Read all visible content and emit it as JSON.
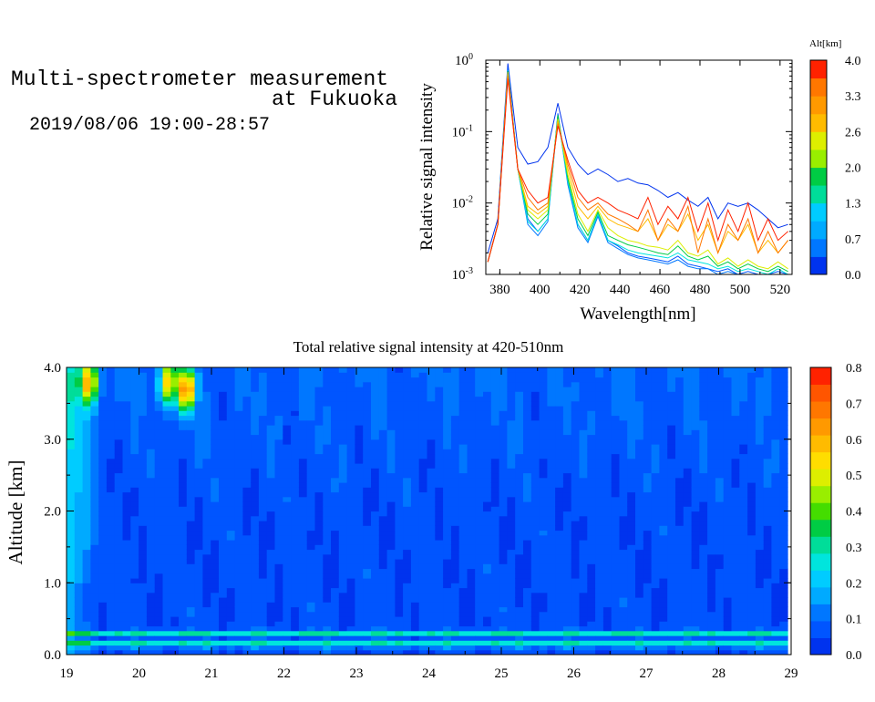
{
  "header": {
    "title_line1": "Multi-spectrometer measurement",
    "title_line2": "at Fukuoka",
    "datetime": "2019/08/06 19:00-28:57"
  },
  "colors": {
    "scale": [
      "#0033ee",
      "#0055ff",
      "#0077ff",
      "#00aaff",
      "#00ccff",
      "#00e5dd",
      "#00dd99",
      "#00cc44",
      "#44dd00",
      "#99ee00",
      "#ddee00",
      "#ffdd00",
      "#ffbb00",
      "#ff9900",
      "#ff7700",
      "#ff5500",
      "#ff2200"
    ]
  },
  "chart_data": [
    {
      "type": "line",
      "xlabel": "Wavelength[nm]",
      "ylabel": "Relative signal intensity",
      "yscale": "log",
      "ylim": [
        0.001,
        1
      ],
      "xlim": [
        373,
        526
      ],
      "xticks": [
        380,
        400,
        420,
        440,
        460,
        480,
        500,
        520
      ],
      "yticks": [
        {
          "value": 0.001,
          "base": "10",
          "exp": "-3"
        },
        {
          "value": 0.01,
          "base": "10",
          "exp": "-2"
        },
        {
          "value": 0.1,
          "base": "10",
          "exp": "-1"
        },
        {
          "value": 1,
          "base": "10",
          "exp": "0"
        }
      ],
      "colorbar": {
        "label": "Alt[km]",
        "ticks": [
          "0.0",
          "0.7",
          "1.3",
          "2.0",
          "2.6",
          "3.3",
          "4.0"
        ],
        "range": [
          0,
          4
        ]
      },
      "x": [
        374,
        379,
        384,
        389,
        394,
        399,
        404,
        409,
        414,
        419,
        424,
        429,
        434,
        439,
        444,
        449,
        454,
        459,
        464,
        469,
        474,
        479,
        484,
        489,
        494,
        499,
        504,
        509,
        514,
        519,
        524
      ],
      "series": [
        {
          "alt": 0.0,
          "values": [
            0.002,
            0.006,
            0.9,
            0.06,
            0.035,
            0.038,
            0.06,
            0.25,
            0.06,
            0.035,
            0.025,
            0.03,
            0.025,
            0.02,
            0.022,
            0.019,
            0.018,
            0.015,
            0.012,
            0.014,
            0.011,
            0.009,
            0.012,
            0.006,
            0.01,
            0.009,
            0.01,
            0.008,
            0.006,
            0.0045,
            0.005
          ]
        },
        {
          "alt": 0.3,
          "values": [
            0.0015,
            0.005,
            0.8,
            0.03,
            0.006,
            0.004,
            0.006,
            0.18,
            0.02,
            0.005,
            0.003,
            0.007,
            0.003,
            0.0025,
            0.002,
            0.0018,
            0.0017,
            0.0016,
            0.0015,
            0.0018,
            0.0014,
            0.0013,
            0.0012,
            0.0011,
            0.0012,
            0.001,
            0.0011,
            0.001,
            0.001,
            0.0011,
            0.001
          ]
        },
        {
          "alt": 0.7,
          "values": [
            0.0015,
            0.005,
            0.75,
            0.03,
            0.005,
            0.0035,
            0.0055,
            0.17,
            0.018,
            0.0045,
            0.0028,
            0.0065,
            0.0028,
            0.0023,
            0.0019,
            0.0017,
            0.0016,
            0.0015,
            0.0014,
            0.0016,
            0.0013,
            0.0012,
            0.0012,
            0.001,
            0.0011,
            0.001,
            0.001,
            0.001,
            0.001,
            0.001,
            0.001
          ]
        },
        {
          "alt": 1.2,
          "values": [
            0.0015,
            0.005,
            0.72,
            0.03,
            0.0055,
            0.004,
            0.006,
            0.16,
            0.02,
            0.005,
            0.003,
            0.007,
            0.003,
            0.0026,
            0.0022,
            0.002,
            0.0019,
            0.0018,
            0.0017,
            0.002,
            0.0016,
            0.0015,
            0.0014,
            0.0012,
            0.0013,
            0.0011,
            0.0012,
            0.0011,
            0.001,
            0.0012,
            0.001
          ]
        },
        {
          "alt": 1.8,
          "values": [
            0.0015,
            0.005,
            0.7,
            0.03,
            0.007,
            0.005,
            0.007,
            0.17,
            0.022,
            0.006,
            0.0035,
            0.0075,
            0.0035,
            0.003,
            0.0026,
            0.0024,
            0.0022,
            0.002,
            0.0019,
            0.0025,
            0.0018,
            0.0016,
            0.0018,
            0.0013,
            0.0015,
            0.0012,
            0.0014,
            0.0012,
            0.0011,
            0.0013,
            0.0011
          ]
        },
        {
          "alt": 2.4,
          "values": [
            0.0015,
            0.005,
            0.68,
            0.03,
            0.008,
            0.006,
            0.008,
            0.15,
            0.025,
            0.007,
            0.004,
            0.008,
            0.0045,
            0.0035,
            0.003,
            0.0028,
            0.0025,
            0.0024,
            0.0022,
            0.003,
            0.002,
            0.0018,
            0.0022,
            0.0014,
            0.0017,
            0.0013,
            0.0016,
            0.0013,
            0.0012,
            0.0015,
            0.0012
          ]
        },
        {
          "alt": 3.0,
          "values": [
            0.0015,
            0.005,
            0.65,
            0.03,
            0.009,
            0.007,
            0.009,
            0.14,
            0.03,
            0.009,
            0.006,
            0.009,
            0.006,
            0.005,
            0.0045,
            0.004,
            0.006,
            0.003,
            0.005,
            0.004,
            0.007,
            0.003,
            0.005,
            0.002,
            0.004,
            0.003,
            0.005,
            0.002,
            0.003,
            0.002,
            0.003
          ]
        },
        {
          "alt": 3.5,
          "values": [
            0.0015,
            0.005,
            0.6,
            0.03,
            0.012,
            0.008,
            0.01,
            0.13,
            0.035,
            0.012,
            0.008,
            0.01,
            0.007,
            0.006,
            0.005,
            0.004,
            0.008,
            0.003,
            0.006,
            0.004,
            0.009,
            0.002,
            0.006,
            0.002,
            0.005,
            0.003,
            0.006,
            0.002,
            0.004,
            0.002,
            0.003
          ]
        },
        {
          "alt": 4.0,
          "values": [
            0.0015,
            0.005,
            0.55,
            0.03,
            0.015,
            0.01,
            0.012,
            0.12,
            0.04,
            0.015,
            0.01,
            0.012,
            0.01,
            0.008,
            0.007,
            0.006,
            0.012,
            0.005,
            0.009,
            0.006,
            0.012,
            0.004,
            0.01,
            0.003,
            0.008,
            0.004,
            0.01,
            0.003,
            0.006,
            0.003,
            0.004
          ]
        }
      ]
    },
    {
      "type": "heatmap",
      "title": "Total relative signal intensity at 420-510nm",
      "ylabel": "Altitude [km]",
      "xlabel": "",
      "xlim": [
        19,
        29
      ],
      "ylim": [
        0,
        4
      ],
      "xticks": [
        "19",
        "20",
        "21",
        "22",
        "23",
        "24",
        "25",
        "26",
        "27",
        "28",
        "29"
      ],
      "yticks": [
        "0.0",
        "1.0",
        "2.0",
        "3.0",
        "4.0"
      ],
      "data_x_end": 28.95,
      "colorbar": {
        "ticks": [
          "0.0",
          "0.1",
          "0.2",
          "0.3",
          "0.4",
          "0.5",
          "0.6",
          "0.7",
          "0.8"
        ],
        "range": [
          0,
          0.8
        ]
      },
      "features": {
        "background_value": 0.06,
        "bright_layer_altitudes_km": [
          0.15,
          0.3
        ],
        "bright_layer_values": [
          0.25,
          0.22
        ],
        "low_cloud_time_range": [
          19.0,
          19.5
        ],
        "high_cloud_patches": [
          {
            "t": 19.3,
            "alt": 3.8,
            "value": 0.5
          },
          {
            "t": 20.4,
            "alt": 3.8,
            "value": 0.45
          },
          {
            "t": 20.65,
            "alt": 3.7,
            "value": 0.6
          }
        ]
      }
    }
  ]
}
